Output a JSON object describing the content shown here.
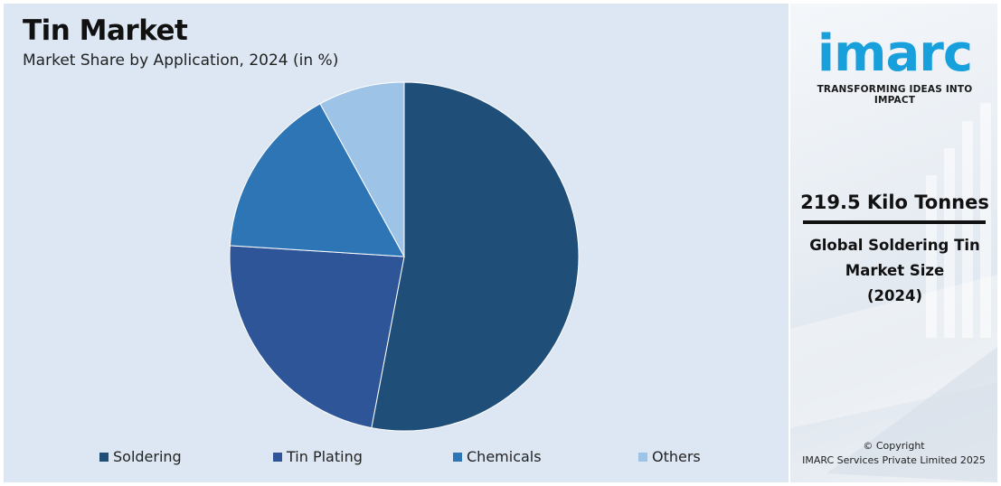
{
  "header": {
    "title": "Tin Market",
    "subtitle": "Market Share by Application, 2024 (in %)"
  },
  "chart_data": {
    "type": "pie",
    "title": "Tin Market",
    "subtitle": "Market Share by Application, 2024 (in %)",
    "categories": [
      "Soldering",
      "Tin Plating",
      "Chemicals",
      "Others"
    ],
    "values": [
      53,
      23,
      16,
      8
    ],
    "colors": [
      "#1f4e79",
      "#2e5597",
      "#2e75b6",
      "#9dc3e6"
    ],
    "start": "12 o'clock, clockwise",
    "legend_position": "bottom",
    "background": "#dde7f3"
  },
  "brand": {
    "logo_text": "imarc",
    "tagline": "TRANSFORMING IDEAS INTO IMPACT",
    "color": "#18a0dc"
  },
  "stat": {
    "value": "219.5 Kilo Tonnes",
    "label_line1": "Global Soldering Tin",
    "label_line2": "Market Size",
    "label_line3": "(2024)"
  },
  "footer": {
    "copyright_line1": "© Copyright",
    "copyright_line2": "IMARC Services Private Limited 2025"
  }
}
